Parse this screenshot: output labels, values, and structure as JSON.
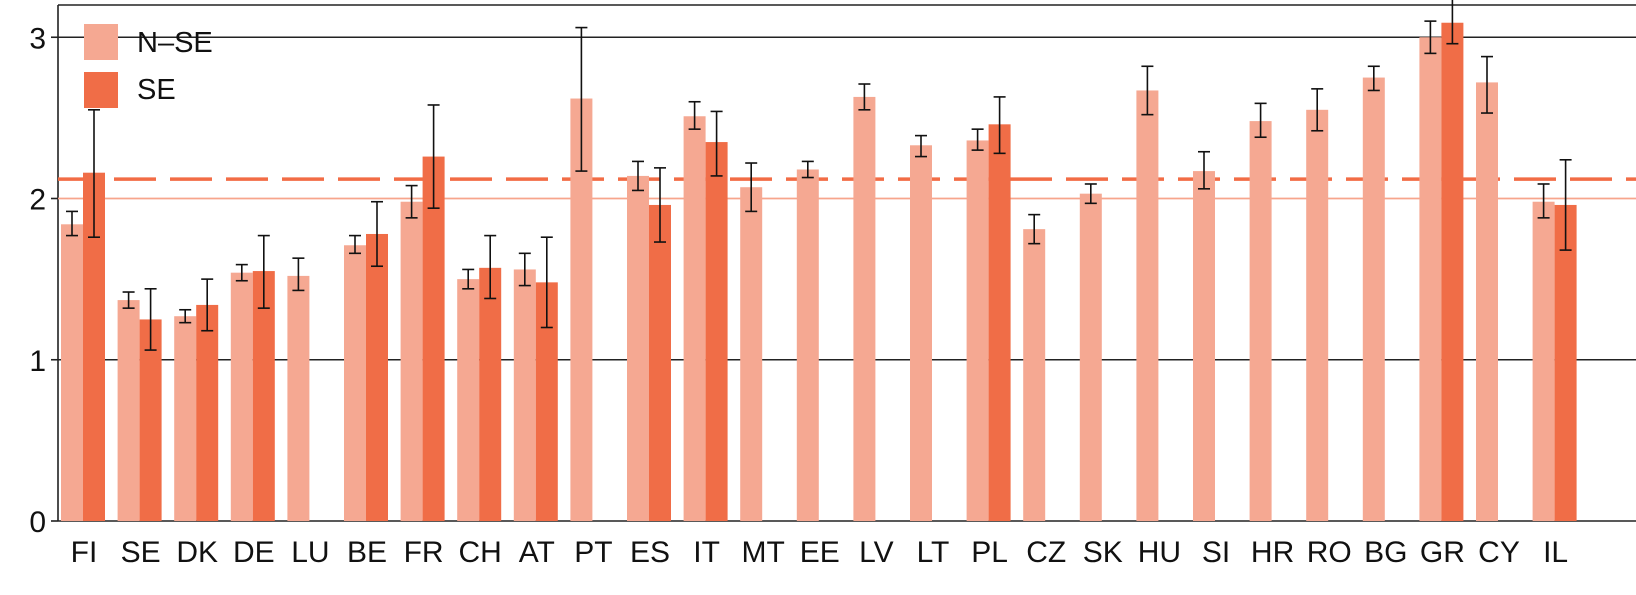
{
  "chart_data": {
    "type": "bar",
    "title": "",
    "xlabel": "",
    "ylabel": "",
    "ylim": [
      0,
      3.2
    ],
    "yticks": [
      0,
      1,
      2,
      3
    ],
    "ytick_labels": [
      "0",
      "1",
      "2",
      "3"
    ],
    "legend_position": "top-left",
    "grid": false,
    "reference_lines": [
      {
        "y": 1,
        "style": "solid",
        "color": "#222222"
      },
      {
        "y": 3,
        "style": "solid",
        "color": "#222222"
      },
      {
        "y": 2,
        "style": "solid",
        "color": "#f7a58c"
      },
      {
        "y": 2.12,
        "style": "dashed",
        "color": "#f26c45"
      }
    ],
    "categories": [
      "FI",
      "SE",
      "DK",
      "DE",
      "LU",
      "BE",
      "FR",
      "CH",
      "AT",
      "PT",
      "ES",
      "IT",
      "MT",
      "EE",
      "LV",
      "LT",
      "PL",
      "CZ",
      "SK",
      "HU",
      "SI",
      "HR",
      "RO",
      "BG",
      "GR",
      "CY",
      "IL"
    ],
    "series": [
      {
        "name": "N–SE",
        "color": "#f5a892",
        "values": [
          1.84,
          1.37,
          1.27,
          1.54,
          1.52,
          1.71,
          1.98,
          1.5,
          1.56,
          2.62,
          2.14,
          2.51,
          2.07,
          2.18,
          2.63,
          2.33,
          2.36,
          1.81,
          2.03,
          2.67,
          2.17,
          2.48,
          2.55,
          2.75,
          3.0,
          2.72,
          1.98
        ],
        "err_low": [
          1.77,
          1.32,
          1.23,
          1.49,
          1.43,
          1.66,
          1.88,
          1.44,
          1.46,
          2.17,
          2.05,
          2.43,
          1.92,
          2.13,
          2.55,
          2.26,
          2.3,
          1.72,
          1.97,
          2.52,
          2.06,
          2.38,
          2.42,
          2.67,
          2.9,
          2.53,
          1.88
        ],
        "err_high": [
          1.92,
          1.42,
          1.31,
          1.59,
          1.63,
          1.77,
          2.08,
          1.56,
          1.66,
          3.06,
          2.23,
          2.6,
          2.22,
          2.23,
          2.71,
          2.39,
          2.43,
          1.9,
          2.09,
          2.82,
          2.29,
          2.59,
          2.68,
          2.82,
          3.1,
          2.88,
          2.09
        ]
      },
      {
        "name": "SE",
        "color": "#f06d47",
        "values": [
          2.16,
          1.25,
          1.34,
          1.55,
          null,
          1.78,
          2.26,
          1.57,
          1.48,
          null,
          1.96,
          2.35,
          null,
          null,
          null,
          null,
          2.46,
          null,
          null,
          null,
          null,
          null,
          null,
          null,
          3.09,
          null,
          1.96
        ],
        "err_low": [
          1.76,
          1.06,
          1.18,
          1.32,
          null,
          1.58,
          1.94,
          1.38,
          1.2,
          null,
          1.73,
          2.14,
          null,
          null,
          null,
          null,
          2.28,
          null,
          null,
          null,
          null,
          null,
          null,
          null,
          2.96,
          null,
          1.68
        ],
        "err_high": [
          2.55,
          1.44,
          1.5,
          1.77,
          null,
          1.98,
          2.58,
          1.77,
          1.76,
          null,
          2.19,
          2.54,
          null,
          null,
          null,
          null,
          2.63,
          null,
          null,
          null,
          null,
          null,
          null,
          null,
          3.25,
          null,
          2.24
        ]
      }
    ]
  }
}
